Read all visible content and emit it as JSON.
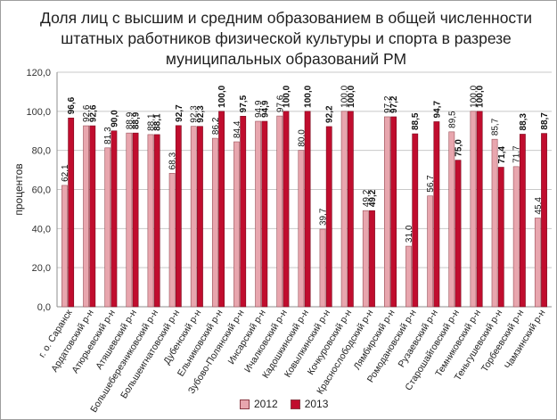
{
  "chart_data": {
    "type": "bar",
    "title": "Доля лиц с высшим и средним образованием в общей численности штатных работников физической культуры и спорта в разрезе муниципальных образований РМ",
    "ylabel": "процентов",
    "xlabel": "",
    "ylim": [
      0,
      120
    ],
    "yticks": [
      "0,0",
      "20,0",
      "40,0",
      "60,0",
      "80,0",
      "100,0",
      "120,0"
    ],
    "grid": true,
    "legend_position": "bottom",
    "categories": [
      "г. о. Саранск",
      "Ардатовский р-н",
      "Атюрьевский р-н",
      "Атяшевский р-н",
      "Большеберезниковский р-н",
      "Большеигнатовский р-н",
      "Дубенский р-н",
      "Ельниковский р-н",
      "Зубово-Полянский р-н",
      "Инсарский р-н",
      "Ичалковский р-н",
      "Кадошкинский р-н",
      "Ковылкинский р-н",
      "Кочкуровский р-н",
      "Краснослободский р-н",
      "Лямбирский р-н",
      "Ромодановский р-н",
      "Рузаевский р-н",
      "Старошайговский р-н",
      "Темниковский р-н",
      "Теньгушевский р-н",
      "Торбеевский р-н",
      "Чамзинский р-н"
    ],
    "series": [
      {
        "name": "2012",
        "color": "#e8a6ae",
        "values": [
          62.1,
          92.6,
          81.3,
          88.9,
          88.1,
          68.3,
          92.3,
          86.2,
          84.4,
          94.9,
          97.6,
          80.0,
          39.7,
          100.0,
          49.2,
          97.2,
          31.0,
          56.7,
          89.5,
          100.0,
          85.7,
          71.7,
          45.4
        ],
        "labels": [
          "62,1",
          "92,6",
          "81,3",
          "88,9",
          "88,1",
          "68,3",
          "92,3",
          "86,2",
          "84,4",
          "94,9",
          "97,6",
          "80,0",
          "39,7",
          "100,0",
          "49,2",
          "97,2",
          "31,0",
          "56,7",
          "89,5",
          "100,0",
          "85,7",
          "71,7",
          "45,4"
        ]
      },
      {
        "name": "2013",
        "color": "#c00d2e",
        "values": [
          96.6,
          92.6,
          90.0,
          88.9,
          88.1,
          92.7,
          92.3,
          100.0,
          97.5,
          94.9,
          100.0,
          100.0,
          92.2,
          100.0,
          49.2,
          97.2,
          88.5,
          94.7,
          75.0,
          100.0,
          71.4,
          88.3,
          88.7
        ],
        "labels": [
          "96,6",
          "92,6",
          "90,0",
          "88,9",
          "88,1",
          "92,7",
          "92,3",
          "100,0",
          "97,5",
          "94,9",
          "100,0",
          "100,0",
          "92,2",
          "100,0",
          "49,2",
          "97,2",
          "88,5",
          "94,7",
          "75,0",
          "100,0",
          "71,4",
          "88,3",
          "88,7"
        ]
      }
    ]
  }
}
